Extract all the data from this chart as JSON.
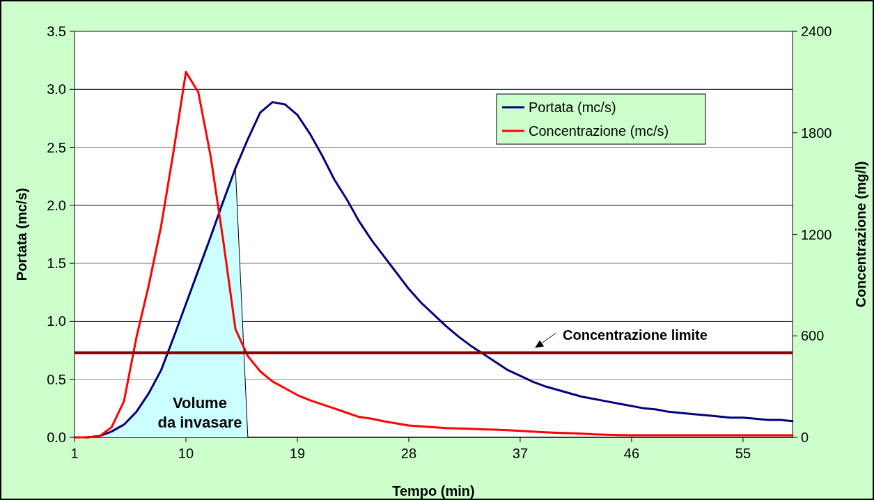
{
  "chart_data": {
    "type": "line",
    "xlabel": "Tempo (min)",
    "ylabel": "Portata (mc/s)",
    "y2label": "Concentrazione (mg/l)",
    "xlim": [
      1,
      59
    ],
    "xticks": [
      1,
      10,
      19,
      28,
      37,
      46,
      55
    ],
    "ylim": [
      0,
      3.5
    ],
    "yticks": [
      {
        "value": 0,
        "label": "0.0"
      },
      {
        "value": 0.5,
        "label": "0.5"
      },
      {
        "value": 1,
        "label": "1.0"
      },
      {
        "value": 1.5,
        "label": "1.5"
      },
      {
        "value": 2,
        "label": "2.0"
      },
      {
        "value": 2.5,
        "label": "2.5"
      },
      {
        "value": 3,
        "label": "3.0"
      },
      {
        "value": 3.5,
        "label": "3.5"
      }
    ],
    "y2lim": [
      0,
      2400
    ],
    "y2ticks": [
      0,
      600,
      1200,
      1800,
      2400
    ],
    "grid": "y",
    "legend": "top right",
    "line_style": "solid",
    "series": [
      {
        "type": "area",
        "color": "#ccffff",
        "x": [
          3,
          4,
          5,
          6,
          7,
          8,
          9,
          10,
          11,
          12,
          13,
          14,
          15
        ],
        "values": [
          0.01,
          0.05,
          0.11,
          0.22,
          0.38,
          0.58,
          0.86,
          1.15,
          1.44,
          1.73,
          2.03,
          2.32,
          0
        ]
      },
      {
        "name": "Portata (mc/s)",
        "color": "#000080",
        "x": [
          2,
          3,
          4,
          5,
          6,
          7,
          8,
          9,
          10,
          11,
          12,
          13,
          14,
          15,
          16,
          17,
          18,
          19,
          20,
          21,
          22,
          23,
          24,
          25,
          26,
          27,
          28,
          29,
          30,
          31,
          32,
          33,
          34,
          35,
          36,
          37,
          38,
          39,
          40,
          41,
          42,
          43,
          44,
          45,
          46,
          47,
          48,
          49,
          50,
          51,
          52,
          53,
          54,
          55,
          56,
          57,
          58,
          59
        ],
        "values": [
          0,
          0.01,
          0.05,
          0.11,
          0.22,
          0.38,
          0.58,
          0.86,
          1.15,
          1.44,
          1.73,
          2.03,
          2.32,
          2.57,
          2.8,
          2.89,
          2.87,
          2.78,
          2.62,
          2.43,
          2.22,
          2.05,
          1.86,
          1.7,
          1.56,
          1.42,
          1.28,
          1.16,
          1.06,
          0.96,
          0.87,
          0.79,
          0.72,
          0.65,
          0.58,
          0.53,
          0.48,
          0.44,
          0.41,
          0.38,
          0.35,
          0.33,
          0.31,
          0.29,
          0.27,
          0.25,
          0.24,
          0.22,
          0.21,
          0.2,
          0.19,
          0.18,
          0.17,
          0.17,
          0.16,
          0.15,
          0.15,
          0.14
        ]
      },
      {
        "name": "Concentrazione (mc/s)",
        "color": "#ff0000",
        "axis": "y2",
        "x": [
          1,
          2,
          3,
          4,
          5,
          6,
          7,
          8,
          9,
          10,
          11,
          12,
          13,
          14,
          15,
          16,
          17,
          18,
          19,
          20,
          21,
          22,
          23,
          24,
          25,
          26,
          27,
          28,
          29,
          30,
          31,
          32,
          33,
          34,
          35,
          36,
          37,
          38,
          39,
          40,
          41,
          42,
          43,
          44,
          45,
          46,
          47,
          48,
          49,
          50,
          51,
          52,
          53,
          54,
          55,
          56,
          57,
          58,
          59
        ],
        "values": [
          0,
          0,
          5,
          60,
          215,
          590,
          900,
          1250,
          1690,
          2160,
          2040,
          1660,
          1170,
          640,
          480,
          390,
          330,
          290,
          250,
          220,
          195,
          170,
          145,
          120,
          110,
          95,
          82,
          70,
          65,
          60,
          55,
          52,
          50,
          47,
          45,
          42,
          38,
          34,
          30,
          27,
          25,
          22,
          18,
          15,
          13,
          12,
          12,
          12,
          12,
          12,
          12,
          12,
          12,
          12,
          12,
          12,
          12,
          12,
          12
        ]
      }
    ],
    "ref_lines": [
      {
        "axis": "y2",
        "value": 500,
        "label": "Concentrazione limite",
        "color": "#800000"
      }
    ],
    "annotations": [
      "Volume da invasare"
    ]
  }
}
